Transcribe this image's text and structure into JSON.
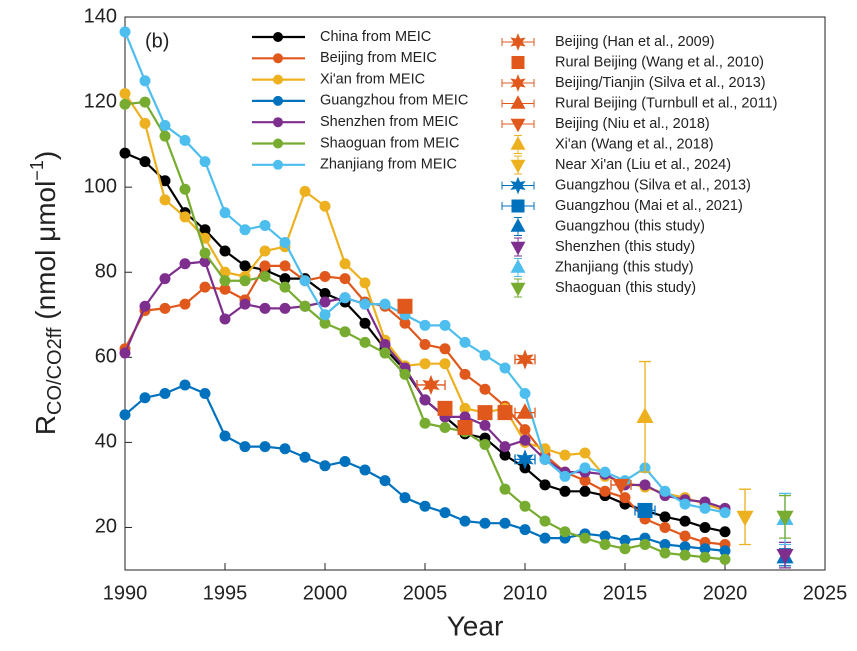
{
  "chart_data": {
    "type": "line",
    "panel_label": "(b)",
    "xlabel": "Year",
    "ylabel_parts": [
      "R",
      "CO/CO2ff",
      " (nmol μmol",
      "−1",
      ")"
    ],
    "xlim": [
      1990,
      2025
    ],
    "xticks": [
      1990,
      1995,
      2000,
      2005,
      2010,
      2015,
      2020,
      2025
    ],
    "ylim": [
      10,
      140
    ],
    "yticks": [
      20,
      40,
      60,
      80,
      100,
      120,
      140
    ],
    "x": [
      1990,
      1991,
      1992,
      1993,
      1994,
      1995,
      1996,
      1997,
      1998,
      1999,
      2000,
      2001,
      2002,
      2003,
      2004,
      2005,
      2006,
      2007,
      2008,
      2009,
      2010,
      2011,
      2012,
      2013,
      2014,
      2015,
      2016,
      2017,
      2018,
      2019,
      2020
    ],
    "series": [
      {
        "name": "China from MEIC",
        "color": "#000000",
        "values": [
          108,
          106,
          101.5,
          94,
          90,
          85,
          81.5,
          80.5,
          78.5,
          78.5,
          75,
          73,
          68,
          62,
          57,
          50,
          46,
          42,
          41,
          37,
          34,
          30,
          28.5,
          28.5,
          27.5,
          25.5,
          24,
          22.5,
          21.5,
          20,
          19
        ]
      },
      {
        "name": "Beijing from MEIC",
        "color": "#e0581c",
        "values": [
          62,
          71,
          71.5,
          72.5,
          76.5,
          76,
          73.5,
          81.5,
          81.5,
          78,
          79,
          78.5,
          73,
          72,
          68,
          63,
          62,
          56,
          52.5,
          48.5,
          43,
          37,
          33,
          31,
          28.5,
          27,
          22,
          20,
          18,
          16.5,
          16
        ]
      },
      {
        "name": "Xi'an from MEIC",
        "color": "#edb120",
        "values": [
          122,
          115,
          97,
          93,
          88,
          80,
          79,
          85,
          86,
          99,
          95.5,
          82,
          77.5,
          64,
          58,
          58.5,
          58.5,
          48,
          47,
          48,
          40,
          38.5,
          37,
          37.5,
          32,
          30.5,
          29.5,
          28,
          27,
          25.5,
          24
        ]
      },
      {
        "name": "Guangzhou from MEIC",
        "color": "#0072bd",
        "values": [
          46.5,
          50.5,
          51.5,
          53.5,
          51.5,
          41.5,
          39,
          39,
          38.5,
          36.5,
          34.5,
          35.5,
          33.5,
          31,
          27,
          25,
          23.5,
          21.5,
          21,
          21,
          19.5,
          17.5,
          17.5,
          18.5,
          18,
          17,
          17.5,
          16,
          15.5,
          15,
          14.5
        ]
      },
      {
        "name": "Shenzhen from MEIC",
        "color": "#7e2f8e",
        "values": [
          61,
          72,
          78.5,
          82,
          82.5,
          69,
          72.5,
          71.5,
          71.5,
          72,
          73,
          74,
          72.5,
          63,
          57.5,
          50,
          46,
          46,
          44,
          39,
          40.5,
          36,
          33,
          33,
          32.5,
          30,
          30,
          27.5,
          26.5,
          26,
          24.5
        ]
      },
      {
        "name": "Shaoguan from MEIC",
        "color": "#77ac30",
        "values": [
          119.5,
          120,
          112,
          99.5,
          84.5,
          78,
          78,
          79,
          76.5,
          72,
          68,
          66,
          63.5,
          61,
          56,
          44.5,
          43.5,
          42.5,
          39.5,
          29,
          25,
          21.5,
          19,
          17.5,
          16,
          15,
          16,
          14,
          13.5,
          13,
          12.5
        ]
      },
      {
        "name": "Zhanjiang from MEIC",
        "color": "#4dbeee",
        "values": [
          136.5,
          125,
          114.5,
          111,
          106,
          94,
          90,
          91,
          87,
          78,
          70,
          74,
          72.5,
          72.5,
          70,
          67.5,
          67.5,
          63.5,
          60.5,
          57.5,
          51.5,
          36,
          32,
          34,
          33,
          31,
          34,
          28.5,
          25.5,
          24.5,
          23.5
        ]
      }
    ],
    "points": [
      {
        "name": "Beijing (Han et al., 2009)",
        "color": "#e0581c",
        "marker": "hexagram",
        "x": [
          2005.3
        ],
        "y": [
          53.5
        ],
        "xerr": [
          0.7
        ]
      },
      {
        "name": "Rural Beijing (Wang et al., 2010)",
        "color": "#e0581c",
        "marker": "square",
        "x": [
          2004,
          2006,
          2007,
          2008,
          2009
        ],
        "y": [
          72,
          48,
          43.5,
          47,
          47
        ]
      },
      {
        "name": "Beijing/Tianjin (Silva et al., 2013)",
        "color": "#e0581c",
        "marker": "hexagram",
        "x": [
          2010
        ],
        "y": [
          59.5
        ],
        "xerr": [
          0.5
        ]
      },
      {
        "name": "Rural Beijing (Turnbull et al., 2011)",
        "color": "#e0581c",
        "marker": "triangle-up",
        "x": [
          2010
        ],
        "y": [
          47
        ],
        "xerr": [
          0.5
        ]
      },
      {
        "name": "Beijing (Niu et al., 2018)",
        "color": "#e0581c",
        "marker": "triangle-down",
        "x": [
          2014.8
        ],
        "y": [
          30
        ],
        "xerr": [
          0.5
        ]
      },
      {
        "name": "Xi'an (Wang et al., 2018)",
        "color": "#edb120",
        "marker": "triangle-up",
        "x": [
          2016
        ],
        "y": [
          46
        ],
        "yerr": [
          13
        ]
      },
      {
        "name": "Near Xi'an (Liu et al., 2024)",
        "color": "#edb120",
        "marker": "triangle-down",
        "x": [
          2021
        ],
        "y": [
          22.5
        ],
        "yerr": [
          6.5
        ]
      },
      {
        "name": "Guangzhou (Silva et al., 2013)",
        "color": "#0072bd",
        "marker": "hexagram",
        "x": [
          2010
        ],
        "y": [
          36
        ],
        "xerr": [
          0.5
        ]
      },
      {
        "name": "Guangzhou (Mai et al., 2021)",
        "color": "#0072bd",
        "marker": "square",
        "x": [
          2016
        ],
        "y": [
          24
        ],
        "xerr": [
          0.5
        ]
      },
      {
        "name": "Guangzhou (this study)",
        "color": "#0072bd",
        "marker": "triangle-up",
        "x": [
          2023
        ],
        "y": [
          13
        ],
        "yerr": [
          2
        ]
      },
      {
        "name": "Shenzhen (this study)",
        "color": "#7e2f8e",
        "marker": "triangle-down",
        "x": [
          2023
        ],
        "y": [
          13.5
        ],
        "yerr": [
          3
        ]
      },
      {
        "name": "Zhanjiang (this study)",
        "color": "#4dbeee",
        "marker": "triangle-up",
        "x": [
          2023
        ],
        "y": [
          22
        ],
        "yerr": [
          6
        ]
      },
      {
        "name": "Shaoguan (this study)",
        "color": "#77ac30",
        "marker": "triangle-down",
        "x": [
          2023
        ],
        "y": [
          22.5
        ],
        "yerr": [
          5
        ]
      }
    ]
  }
}
